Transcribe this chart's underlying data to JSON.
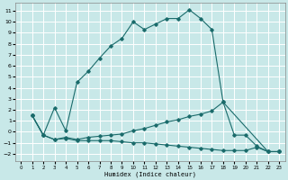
{
  "xlabel": "Humidex (Indice chaleur)",
  "bg_color": "#c8e8e8",
  "grid_color": "#ffffff",
  "line_color": "#1a6b6b",
  "xlim": [
    -0.5,
    23.5
  ],
  "ylim": [
    -2.7,
    11.7
  ],
  "xticks": [
    0,
    1,
    2,
    3,
    4,
    5,
    6,
    7,
    8,
    9,
    10,
    11,
    12,
    13,
    14,
    15,
    16,
    17,
    18,
    19,
    20,
    21,
    22,
    23
  ],
  "yticks": [
    -2,
    -1,
    0,
    1,
    2,
    3,
    4,
    5,
    6,
    7,
    8,
    9,
    10,
    11
  ],
  "line1_x": [
    1,
    2,
    3,
    4,
    5,
    6,
    7,
    8,
    9,
    10,
    11,
    12,
    13,
    14,
    15,
    16,
    17,
    18,
    22,
    23
  ],
  "line1_y": [
    1.5,
    -0.3,
    2.2,
    0.1,
    4.5,
    5.5,
    6.7,
    7.8,
    8.5,
    10.0,
    9.3,
    9.8,
    10.3,
    10.3,
    11.1,
    10.3,
    9.3,
    2.7,
    -1.8,
    -1.8
  ],
  "line2_x": [
    1,
    2,
    3,
    4,
    5,
    6,
    7,
    8,
    9,
    10,
    11,
    12,
    13,
    14,
    15,
    16,
    17,
    18,
    19,
    20,
    21,
    22,
    23
  ],
  "line2_y": [
    1.5,
    -0.3,
    -0.7,
    -0.5,
    -0.7,
    -0.5,
    -0.4,
    -0.3,
    -0.2,
    0.1,
    0.3,
    0.6,
    0.9,
    1.1,
    1.4,
    1.6,
    1.9,
    2.7,
    -0.3,
    -0.3,
    -1.3,
    -1.8,
    -1.8
  ],
  "line3_x": [
    1,
    2,
    3,
    4,
    5,
    6,
    7,
    8,
    9,
    10,
    11,
    12,
    13,
    14,
    15,
    16,
    17,
    18,
    19,
    20,
    21,
    22,
    23
  ],
  "line3_y": [
    1.5,
    -0.3,
    -0.7,
    -0.6,
    -0.8,
    -0.8,
    -0.8,
    -0.8,
    -0.9,
    -1.0,
    -1.0,
    -1.1,
    -1.2,
    -1.3,
    -1.4,
    -1.5,
    -1.6,
    -1.7,
    -1.7,
    -1.7,
    -1.4,
    -1.8,
    -1.8
  ]
}
